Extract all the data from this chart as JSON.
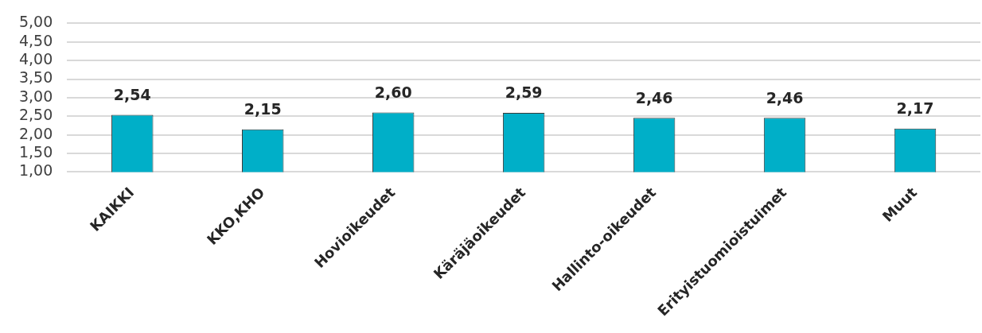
{
  "chart_data": {
    "type": "bar",
    "categories": [
      "KAIKKI",
      "KKO,KHO",
      "Hovioikeudet",
      "Käräjäoikeudet",
      "Hallinto-oikeudet",
      "Erityistuomioistuimet",
      "Muut"
    ],
    "values": [
      2.54,
      2.15,
      2.6,
      2.59,
      2.46,
      2.46,
      2.17
    ],
    "value_labels": [
      "2,54",
      "2,15",
      "2,60",
      "2,59",
      "2,46",
      "2,46",
      "2,17"
    ],
    "color": "#00afc8",
    "ylim": [
      1,
      5
    ],
    "yticks": [
      {
        "value": 1,
        "label": "1,00"
      },
      {
        "value": 1.5,
        "label": "1,50"
      },
      {
        "value": 2,
        "label": "2,00"
      },
      {
        "value": 2.5,
        "label": "2,50"
      },
      {
        "value": 3,
        "label": "3,00"
      },
      {
        "value": 3.5,
        "label": "3,50"
      },
      {
        "value": 4,
        "label": "4,00"
      },
      {
        "value": 4.5,
        "label": "4,50"
      },
      {
        "value": 5,
        "label": "5,00"
      }
    ],
    "grid": "y"
  }
}
